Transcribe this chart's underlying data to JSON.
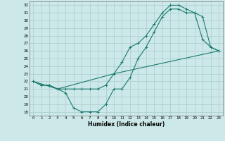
{
  "xlabel": "Humidex (Indice chaleur)",
  "bg_color": "#cce8e8",
  "line_color": "#1a7a6e",
  "grid_color": "#aacccc",
  "xlim": [
    -0.5,
    23.5
  ],
  "ylim": [
    17.5,
    32.5
  ],
  "xticks": [
    0,
    1,
    2,
    3,
    4,
    5,
    6,
    7,
    8,
    9,
    10,
    11,
    12,
    13,
    14,
    15,
    16,
    17,
    18,
    19,
    20,
    21,
    22,
    23
  ],
  "yticks": [
    18,
    19,
    20,
    21,
    22,
    23,
    24,
    25,
    26,
    27,
    28,
    29,
    30,
    31,
    32
  ],
  "line1_x": [
    0,
    1,
    2,
    3,
    4,
    5,
    6,
    7,
    8,
    9,
    10,
    11,
    12,
    13,
    14,
    15,
    16,
    17,
    18,
    19,
    20,
    21,
    22,
    23
  ],
  "line1_y": [
    22.0,
    21.5,
    21.5,
    21.0,
    20.5,
    18.5,
    18.0,
    18.0,
    18.0,
    19.0,
    21.0,
    21.0,
    22.5,
    25.0,
    26.5,
    28.5,
    30.5,
    31.5,
    31.5,
    31.0,
    31.0,
    30.5,
    26.5,
    26.0
  ],
  "line2_x": [
    0,
    1,
    2,
    3,
    4,
    5,
    6,
    7,
    8,
    9,
    10,
    11,
    12,
    13,
    14,
    15,
    16,
    17,
    18,
    19,
    20,
    21,
    22,
    23
  ],
  "line2_y": [
    22.0,
    21.5,
    21.5,
    21.0,
    21.0,
    21.0,
    21.0,
    21.0,
    21.0,
    21.5,
    23.0,
    24.5,
    26.5,
    27.0,
    28.0,
    29.5,
    31.0,
    32.0,
    32.0,
    31.5,
    31.0,
    27.5,
    26.5,
    26.0
  ],
  "line3_x": [
    0,
    3,
    10,
    23
  ],
  "line3_y": [
    22.0,
    21.0,
    23.0,
    26.0
  ]
}
